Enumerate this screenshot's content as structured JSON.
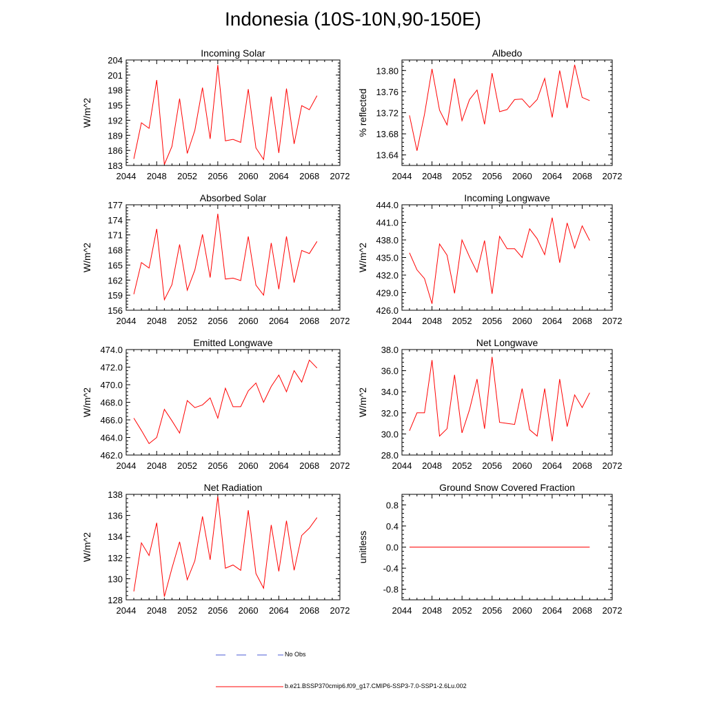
{
  "title": "Indonesia (10S-10N,90-150E)",
  "legend": {
    "obs_label": "No Obs",
    "obs_color": "#4a5ad6",
    "run_label": "b.e21.BSSP370cmip6.f09_g17.CMIP6-SSP3-7.0-SSP1-2.6Lu.002",
    "run_color": "#ff0000"
  },
  "chart_data": [
    {
      "type": "line",
      "title": "Incoming Solar",
      "ylabel": "W/m^2",
      "xlim": [
        2044,
        2072
      ],
      "x_ticks": [
        "2044",
        "2048",
        "2052",
        "2056",
        "2060",
        "2064",
        "2068",
        "2072"
      ],
      "ylim": [
        183,
        204
      ],
      "y_ticks": [
        "183",
        "186",
        "189",
        "192",
        "195",
        "198",
        "201",
        "204"
      ],
      "y_tick_values": [
        183,
        186,
        189,
        192,
        195,
        198,
        201,
        204
      ],
      "series": [
        {
          "color": "#ff0000",
          "x": [
            2045,
            2046,
            2047,
            2048,
            2049,
            2050,
            2051,
            2052,
            2053,
            2054,
            2055,
            2056,
            2057,
            2058,
            2059,
            2060,
            2061,
            2062,
            2063,
            2064,
            2065,
            2066,
            2067,
            2068,
            2069
          ],
          "values": [
            184.3,
            191.5,
            190.4,
            200.0,
            183.2,
            186.8,
            196.3,
            185.4,
            190.0,
            198.5,
            188.3,
            203.0,
            187.9,
            188.2,
            187.6,
            198.2,
            186.5,
            184.2,
            196.7,
            185.5,
            198.3,
            187.3,
            194.9,
            194.1,
            196.9
          ]
        }
      ]
    },
    {
      "type": "line",
      "title": "Albedo",
      "ylabel": "% reflected",
      "xlim": [
        2044,
        2072
      ],
      "x_ticks": [
        "2044",
        "2048",
        "2052",
        "2056",
        "2060",
        "2064",
        "2068",
        "2072"
      ],
      "ylim": [
        13.62,
        13.82
      ],
      "y_ticks": [
        "13.64",
        "13.68",
        "13.72",
        "13.76",
        "13.80"
      ],
      "y_tick_values": [
        13.64,
        13.68,
        13.72,
        13.76,
        13.8
      ],
      "series": [
        {
          "color": "#ff0000",
          "x": [
            2045,
            2046,
            2047,
            2048,
            2049,
            2050,
            2051,
            2052,
            2053,
            2054,
            2055,
            2056,
            2057,
            2058,
            2059,
            2060,
            2061,
            2062,
            2063,
            2064,
            2065,
            2066,
            2067,
            2068,
            2069
          ],
          "values": [
            13.715,
            13.648,
            13.717,
            13.803,
            13.725,
            13.697,
            13.785,
            13.705,
            13.745,
            13.763,
            13.698,
            13.795,
            13.722,
            13.726,
            13.745,
            13.746,
            13.73,
            13.745,
            13.785,
            13.711,
            13.8,
            13.729,
            13.811,
            13.749,
            13.743
          ]
        }
      ]
    },
    {
      "type": "line",
      "title": "Absorbed Solar",
      "ylabel": "W/m^2",
      "xlim": [
        2044,
        2072
      ],
      "x_ticks": [
        "2044",
        "2048",
        "2052",
        "2056",
        "2060",
        "2064",
        "2068",
        "2072"
      ],
      "ylim": [
        156,
        177
      ],
      "y_ticks": [
        "156",
        "159",
        "162",
        "165",
        "168",
        "171",
        "174",
        "177"
      ],
      "y_tick_values": [
        156,
        159,
        162,
        165,
        168,
        171,
        174,
        177
      ],
      "series": [
        {
          "color": "#ff0000",
          "x": [
            2045,
            2046,
            2047,
            2048,
            2049,
            2050,
            2051,
            2052,
            2053,
            2054,
            2055,
            2056,
            2057,
            2058,
            2059,
            2060,
            2061,
            2062,
            2063,
            2064,
            2065,
            2066,
            2067,
            2068,
            2069
          ],
          "values": [
            159.2,
            165.5,
            164.4,
            172.2,
            158.1,
            161.1,
            169.1,
            160.0,
            164.0,
            171.1,
            162.5,
            175.2,
            162.2,
            162.4,
            161.9,
            170.7,
            161.0,
            159.0,
            169.4,
            160.2,
            170.7,
            161.5,
            167.9,
            167.3,
            169.7
          ]
        }
      ]
    },
    {
      "type": "line",
      "title": "Incoming Longwave",
      "ylabel": "W/m^2",
      "xlim": [
        2044,
        2072
      ],
      "x_ticks": [
        "2044",
        "2048",
        "2052",
        "2056",
        "2060",
        "2064",
        "2068",
        "2072"
      ],
      "ylim": [
        426,
        444
      ],
      "y_ticks": [
        "426.0",
        "429.0",
        "432.0",
        "435.0",
        "438.0",
        "441.0",
        "444.0"
      ],
      "y_tick_values": [
        426,
        429,
        432,
        435,
        438,
        441,
        444
      ],
      "series": [
        {
          "color": "#ff0000",
          "x": [
            2045,
            2046,
            2047,
            2048,
            2049,
            2050,
            2051,
            2052,
            2053,
            2054,
            2055,
            2056,
            2057,
            2058,
            2059,
            2060,
            2061,
            2062,
            2063,
            2064,
            2065,
            2066,
            2067,
            2068,
            2069
          ],
          "values": [
            435.8,
            432.9,
            431.4,
            427.1,
            437.3,
            435.4,
            428.9,
            438.0,
            435.1,
            432.5,
            437.9,
            428.8,
            438.6,
            436.5,
            436.5,
            435.0,
            439.9,
            438.2,
            435.5,
            441.8,
            434.1,
            440.9,
            436.6,
            440.4,
            437.9
          ]
        }
      ]
    },
    {
      "type": "line",
      "title": "Emitted Longwave",
      "ylabel": "W/m^2",
      "xlim": [
        2044,
        2072
      ],
      "x_ticks": [
        "2044",
        "2048",
        "2052",
        "2056",
        "2060",
        "2064",
        "2068",
        "2072"
      ],
      "ylim": [
        462,
        474
      ],
      "y_ticks": [
        "462.0",
        "464.0",
        "466.0",
        "468.0",
        "470.0",
        "472.0",
        "474.0"
      ],
      "y_tick_values": [
        462,
        464,
        466,
        468,
        470,
        472,
        474
      ],
      "series": [
        {
          "color": "#ff0000",
          "x": [
            2045,
            2046,
            2047,
            2048,
            2049,
            2050,
            2051,
            2052,
            2053,
            2054,
            2055,
            2056,
            2057,
            2058,
            2059,
            2060,
            2061,
            2062,
            2063,
            2064,
            2065,
            2066,
            2067,
            2068,
            2069
          ],
          "values": [
            466.2,
            464.8,
            463.3,
            464.0,
            467.2,
            465.9,
            464.5,
            468.2,
            467.4,
            467.7,
            468.5,
            466.2,
            469.6,
            467.5,
            467.5,
            469.3,
            470.2,
            468.0,
            469.8,
            471.1,
            469.2,
            471.6,
            470.3,
            472.8,
            471.9
          ]
        }
      ]
    },
    {
      "type": "line",
      "title": "Net Longwave",
      "ylabel": "W/m^2",
      "xlim": [
        2044,
        2072
      ],
      "x_ticks": [
        "2044",
        "2048",
        "2052",
        "2056",
        "2060",
        "2064",
        "2068",
        "2072"
      ],
      "ylim": [
        28,
        38
      ],
      "y_ticks": [
        "28.0",
        "30.0",
        "32.0",
        "34.0",
        "36.0",
        "38.0"
      ],
      "y_tick_values": [
        28,
        30,
        32,
        34,
        36,
        38
      ],
      "series": [
        {
          "color": "#ff0000",
          "x": [
            2045,
            2046,
            2047,
            2048,
            2049,
            2050,
            2051,
            2052,
            2053,
            2054,
            2055,
            2056,
            2057,
            2058,
            2059,
            2060,
            2061,
            2062,
            2063,
            2064,
            2065,
            2066,
            2067,
            2068,
            2069
          ],
          "values": [
            30.3,
            32.0,
            32.0,
            37.0,
            29.8,
            30.5,
            35.6,
            30.1,
            32.3,
            35.2,
            30.5,
            37.3,
            31.1,
            31.0,
            30.9,
            34.3,
            30.4,
            29.8,
            34.3,
            29.3,
            35.2,
            30.7,
            33.7,
            32.5,
            33.9
          ]
        }
      ]
    },
    {
      "type": "line",
      "title": "Net Radiation",
      "ylabel": "W/m^2",
      "xlim": [
        2044,
        2072
      ],
      "x_ticks": [
        "2044",
        "2048",
        "2052",
        "2056",
        "2060",
        "2064",
        "2068",
        "2072"
      ],
      "ylim": [
        128,
        138
      ],
      "y_ticks": [
        "128",
        "130",
        "132",
        "134",
        "136",
        "138"
      ],
      "y_tick_values": [
        128,
        130,
        132,
        134,
        136,
        138
      ],
      "series": [
        {
          "color": "#ff0000",
          "x": [
            2045,
            2046,
            2047,
            2048,
            2049,
            2050,
            2051,
            2052,
            2053,
            2054,
            2055,
            2056,
            2057,
            2058,
            2059,
            2060,
            2061,
            2062,
            2063,
            2064,
            2065,
            2066,
            2067,
            2068,
            2069
          ],
          "values": [
            128.8,
            133.4,
            132.2,
            135.3,
            128.3,
            131.0,
            133.5,
            129.9,
            131.7,
            135.9,
            131.8,
            137.8,
            131.0,
            131.3,
            130.8,
            136.5,
            130.5,
            129.1,
            135.1,
            130.7,
            135.5,
            130.8,
            134.1,
            134.8,
            135.8
          ]
        }
      ]
    },
    {
      "type": "line",
      "title": "Ground Snow Covered Fraction",
      "ylabel": "unitless",
      "xlim": [
        2044,
        2072
      ],
      "x_ticks": [
        "2044",
        "2048",
        "2052",
        "2056",
        "2060",
        "2064",
        "2068",
        "2072"
      ],
      "ylim": [
        -1.0,
        1.0
      ],
      "y_ticks": [
        "-0.8",
        "-0.4",
        "0.0",
        "0.4",
        "0.8"
      ],
      "y_tick_values": [
        -0.8,
        -0.4,
        0.0,
        0.4,
        0.8
      ],
      "series": [
        {
          "color": "#ff0000",
          "x": [
            2045,
            2046,
            2047,
            2048,
            2049,
            2050,
            2051,
            2052,
            2053,
            2054,
            2055,
            2056,
            2057,
            2058,
            2059,
            2060,
            2061,
            2062,
            2063,
            2064,
            2065,
            2066,
            2067,
            2068,
            2069
          ],
          "values": [
            0,
            0,
            0,
            0,
            0,
            0,
            0,
            0,
            0,
            0,
            0,
            0,
            0,
            0,
            0,
            0,
            0,
            0,
            0,
            0,
            0,
            0,
            0,
            0,
            0
          ]
        }
      ]
    }
  ]
}
